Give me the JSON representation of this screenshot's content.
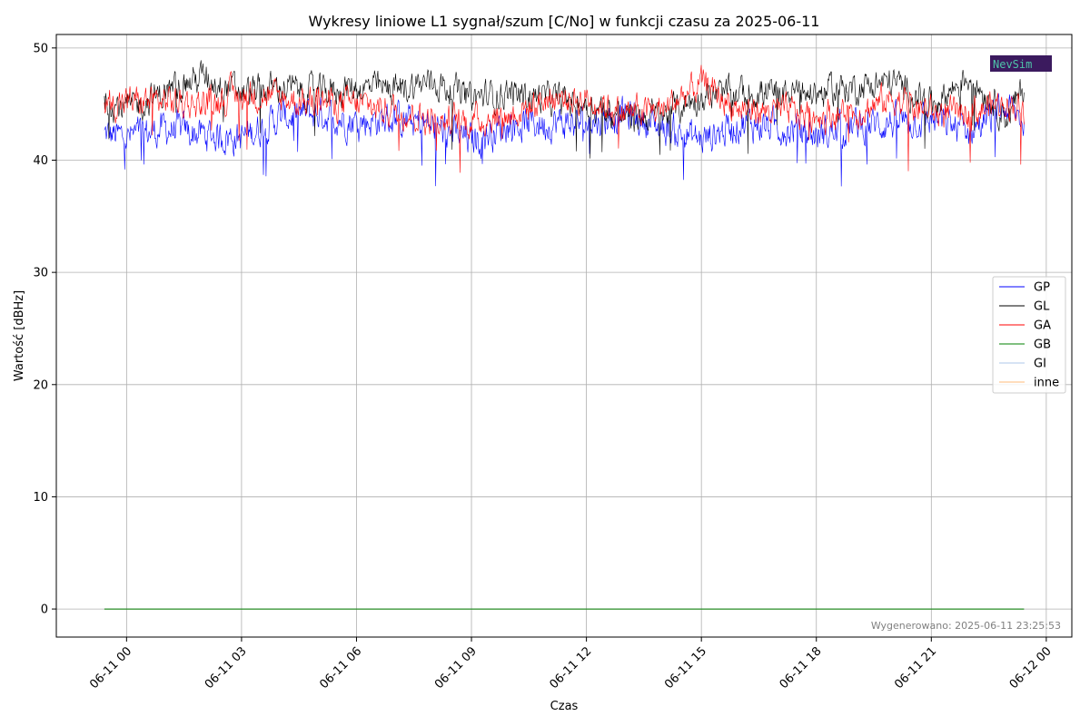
{
  "chart_data": {
    "type": "line",
    "title": "Wykresy liniowe L1 sygnał/szum [C/No] w funkcji czasu za 2025-06-11",
    "xlabel": "Czas",
    "ylabel": "Wartość [dBHz]",
    "xlim": [
      "2025-06-10 22:10",
      "2025-06-12 00:40"
    ],
    "ylim": [
      -2.5,
      51.2
    ],
    "x_ticks": [
      "06-11 00",
      "06-11 03",
      "06-11 06",
      "06-11 09",
      "06-11 12",
      "06-11 15",
      "06-11 18",
      "06-11 21",
      "06-12 00"
    ],
    "y_ticks": [
      "0",
      "10",
      "20",
      "30",
      "40",
      "50"
    ],
    "grid": true,
    "legend_position": "center-right",
    "x_hours": [
      -0.58,
      0,
      1,
      2,
      3,
      4,
      5,
      6,
      7,
      8,
      9,
      10,
      11,
      12,
      13,
      14,
      15,
      16,
      17,
      18,
      19,
      20,
      21,
      22,
      23,
      23.42
    ],
    "series": [
      {
        "name": "GP",
        "color": "#0000ff",
        "values": [
          42.3,
          42.0,
          42.8,
          42.3,
          42.0,
          43.8,
          44.2,
          43.4,
          43.7,
          43.0,
          41.7,
          43.2,
          43.3,
          43.3,
          44.1,
          42.9,
          41.8,
          43.3,
          43.0,
          42.2,
          43.0,
          43.4,
          43.6,
          42.6,
          44.7,
          43.4
        ]
      },
      {
        "name": "GL",
        "color": "#000000",
        "values": [
          45.5,
          44.5,
          46.0,
          47.5,
          46.0,
          46.5,
          46.0,
          46.5,
          46.3,
          47.0,
          45.5,
          46.0,
          45.5,
          45.0,
          43.8,
          44.0,
          45.7,
          46.0,
          46.0,
          46.0,
          46.5,
          47.0,
          45.0,
          47.5,
          43.8,
          46.5
        ]
      },
      {
        "name": "GA",
        "color": "#ff0000",
        "values": [
          45.0,
          45.2,
          45.3,
          45.0,
          46.0,
          45.5,
          45.2,
          45.0,
          44.5,
          43.5,
          43.5,
          44.0,
          45.5,
          45.5,
          44.2,
          44.5,
          46.8,
          44.5,
          44.3,
          44.0,
          44.2,
          45.5,
          44.2,
          44.2,
          45.3,
          44.3
        ]
      },
      {
        "name": "GB",
        "color": "#008000",
        "values": [
          0,
          0,
          0,
          0,
          0,
          0,
          0,
          0,
          0,
          0,
          0,
          0,
          0,
          0,
          0,
          0,
          0,
          0,
          0,
          0,
          0,
          0,
          0,
          0,
          0,
          0
        ]
      },
      {
        "name": "GI",
        "color": "#aec7e8",
        "values": [
          0,
          0,
          0,
          0,
          0,
          0,
          0,
          0,
          0,
          0,
          0,
          0,
          0,
          0,
          0,
          0,
          0,
          0,
          0,
          0,
          0,
          0,
          0,
          0,
          0,
          0
        ]
      },
      {
        "name": "inne",
        "color": "#ffbb78",
        "values": [
          0,
          0,
          0,
          0,
          0,
          0,
          0,
          0,
          0,
          0,
          0,
          0,
          0,
          0,
          0,
          0,
          0,
          0,
          0,
          0,
          0,
          0,
          0,
          0,
          0,
          0
        ]
      }
    ],
    "footnote": "Wygenerowano: 2025-06-11 23:25:53",
    "logo": {
      "text": "NevSim",
      "background": "#3b1a5e",
      "foreground": "#4ec3a8"
    }
  }
}
